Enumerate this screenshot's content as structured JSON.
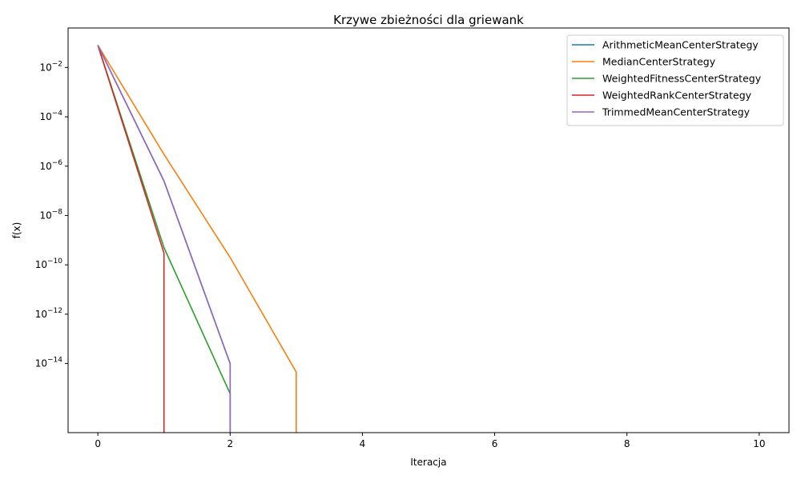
{
  "chart_data": {
    "type": "line",
    "title": "Krzywe zbieżności dla griewank",
    "xlabel": "Iteracja",
    "ylabel": "f(x)",
    "xlim": [
      -0.45,
      10.45
    ],
    "y_scale": "log",
    "ylim_log10": [
      -16.8,
      -0.4
    ],
    "x_ticks": [
      0,
      2,
      4,
      6,
      8,
      10
    ],
    "x_tick_labels": [
      "0",
      "2",
      "4",
      "6",
      "8",
      "10"
    ],
    "y_tick_exponents": [
      -2,
      -4,
      -6,
      -8,
      -10,
      -12,
      -14
    ],
    "y_tick_base": "10",
    "legend_position": "top-right",
    "grid": false,
    "series": [
      {
        "name": "ArithmeticMeanCenterStrategy",
        "color": "#1f77b4",
        "x": [
          0,
          1,
          2
        ],
        "y": [
          0.08,
          2.5e-07,
          1e-14
        ],
        "drops_to_zero_at": 2
      },
      {
        "name": "MedianCenterStrategy",
        "color": "#ff7f0e",
        "x": [
          0,
          1,
          2,
          3
        ],
        "y": [
          0.08,
          3e-06,
          2e-10,
          4.5e-15
        ],
        "drops_to_zero_at": 3
      },
      {
        "name": "WeightedFitnessCenterStrategy",
        "color": "#2ca02c",
        "x": [
          0,
          1,
          2
        ],
        "y": [
          0.08,
          5e-10,
          6e-16
        ],
        "drops_to_zero_at": 2
      },
      {
        "name": "WeightedRankCenterStrategy",
        "color": "#d62728",
        "x": [
          0,
          1
        ],
        "y": [
          0.08,
          3e-10
        ],
        "drops_to_zero_at": 1
      },
      {
        "name": "TrimmedMeanCenterStrategy",
        "color": "#9467bd",
        "x": [
          0,
          1,
          2
        ],
        "y": [
          0.08,
          2.5e-07,
          1e-14
        ],
        "drops_to_zero_at": 2
      }
    ]
  }
}
